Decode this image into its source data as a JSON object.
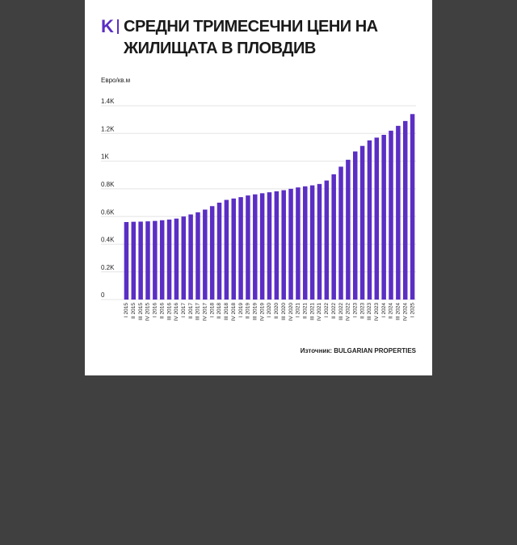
{
  "chart_data": {
    "type": "bar",
    "logo": "K",
    "title": "СРЕДНИ ТРИМЕСЕЧНИ ЦЕНИ НА ЖИЛИЩАТА В ПЛОВДИВ",
    "y_label": "Евро/кв.м",
    "source": "Източник: BULGARIAN PROPERTIES",
    "color": "#5b2ec4",
    "grid": true,
    "categories": [
      "I 2015",
      "II 2015",
      "III 2015",
      "IV 2015",
      "I 2016",
      "II 2016",
      "III 2016",
      "IV 2016",
      "I 2017",
      "II 2017",
      "III 2017",
      "IV 2017",
      "I 2018",
      "II 2018",
      "III 2018",
      "IV 2018",
      "I 2019",
      "II 2019",
      "III 2019",
      "IV 2019",
      "I 2020",
      "II 2020",
      "III 2020",
      "IV 2020",
      "I 2021",
      "II 2021",
      "III 2021",
      "IV 2021",
      "I 2022",
      "II 2022",
      "III 2022",
      "IV 2022",
      "I 2023",
      "II 2023",
      "III 2023",
      "IV 2023",
      "I 2024",
      "II 2024",
      "III 2024",
      "IV 2024",
      "I 2025"
    ],
    "values": [
      560,
      562,
      563,
      565,
      568,
      573,
      578,
      585,
      600,
      615,
      630,
      650,
      675,
      700,
      720,
      730,
      740,
      752,
      760,
      768,
      775,
      782,
      790,
      800,
      810,
      818,
      825,
      835,
      860,
      905,
      960,
      1010,
      1070,
      1110,
      1150,
      1170,
      1190,
      1220,
      1255,
      1290,
      1340
    ],
    "ylim": [
      0,
      1400
    ],
    "yticks": [
      0,
      {
        "value": 200,
        "label": "0.2K"
      },
      {
        "value": 400,
        "label": "0.4K"
      },
      {
        "value": 600,
        "label": "0.6K"
      },
      {
        "value": 800,
        "label": "0.8K"
      },
      {
        "value": 1000,
        "label": "1K"
      },
      {
        "value": 1200,
        "label": "1.2K"
      },
      {
        "value": 1400,
        "label": "1.4K"
      }
    ]
  }
}
